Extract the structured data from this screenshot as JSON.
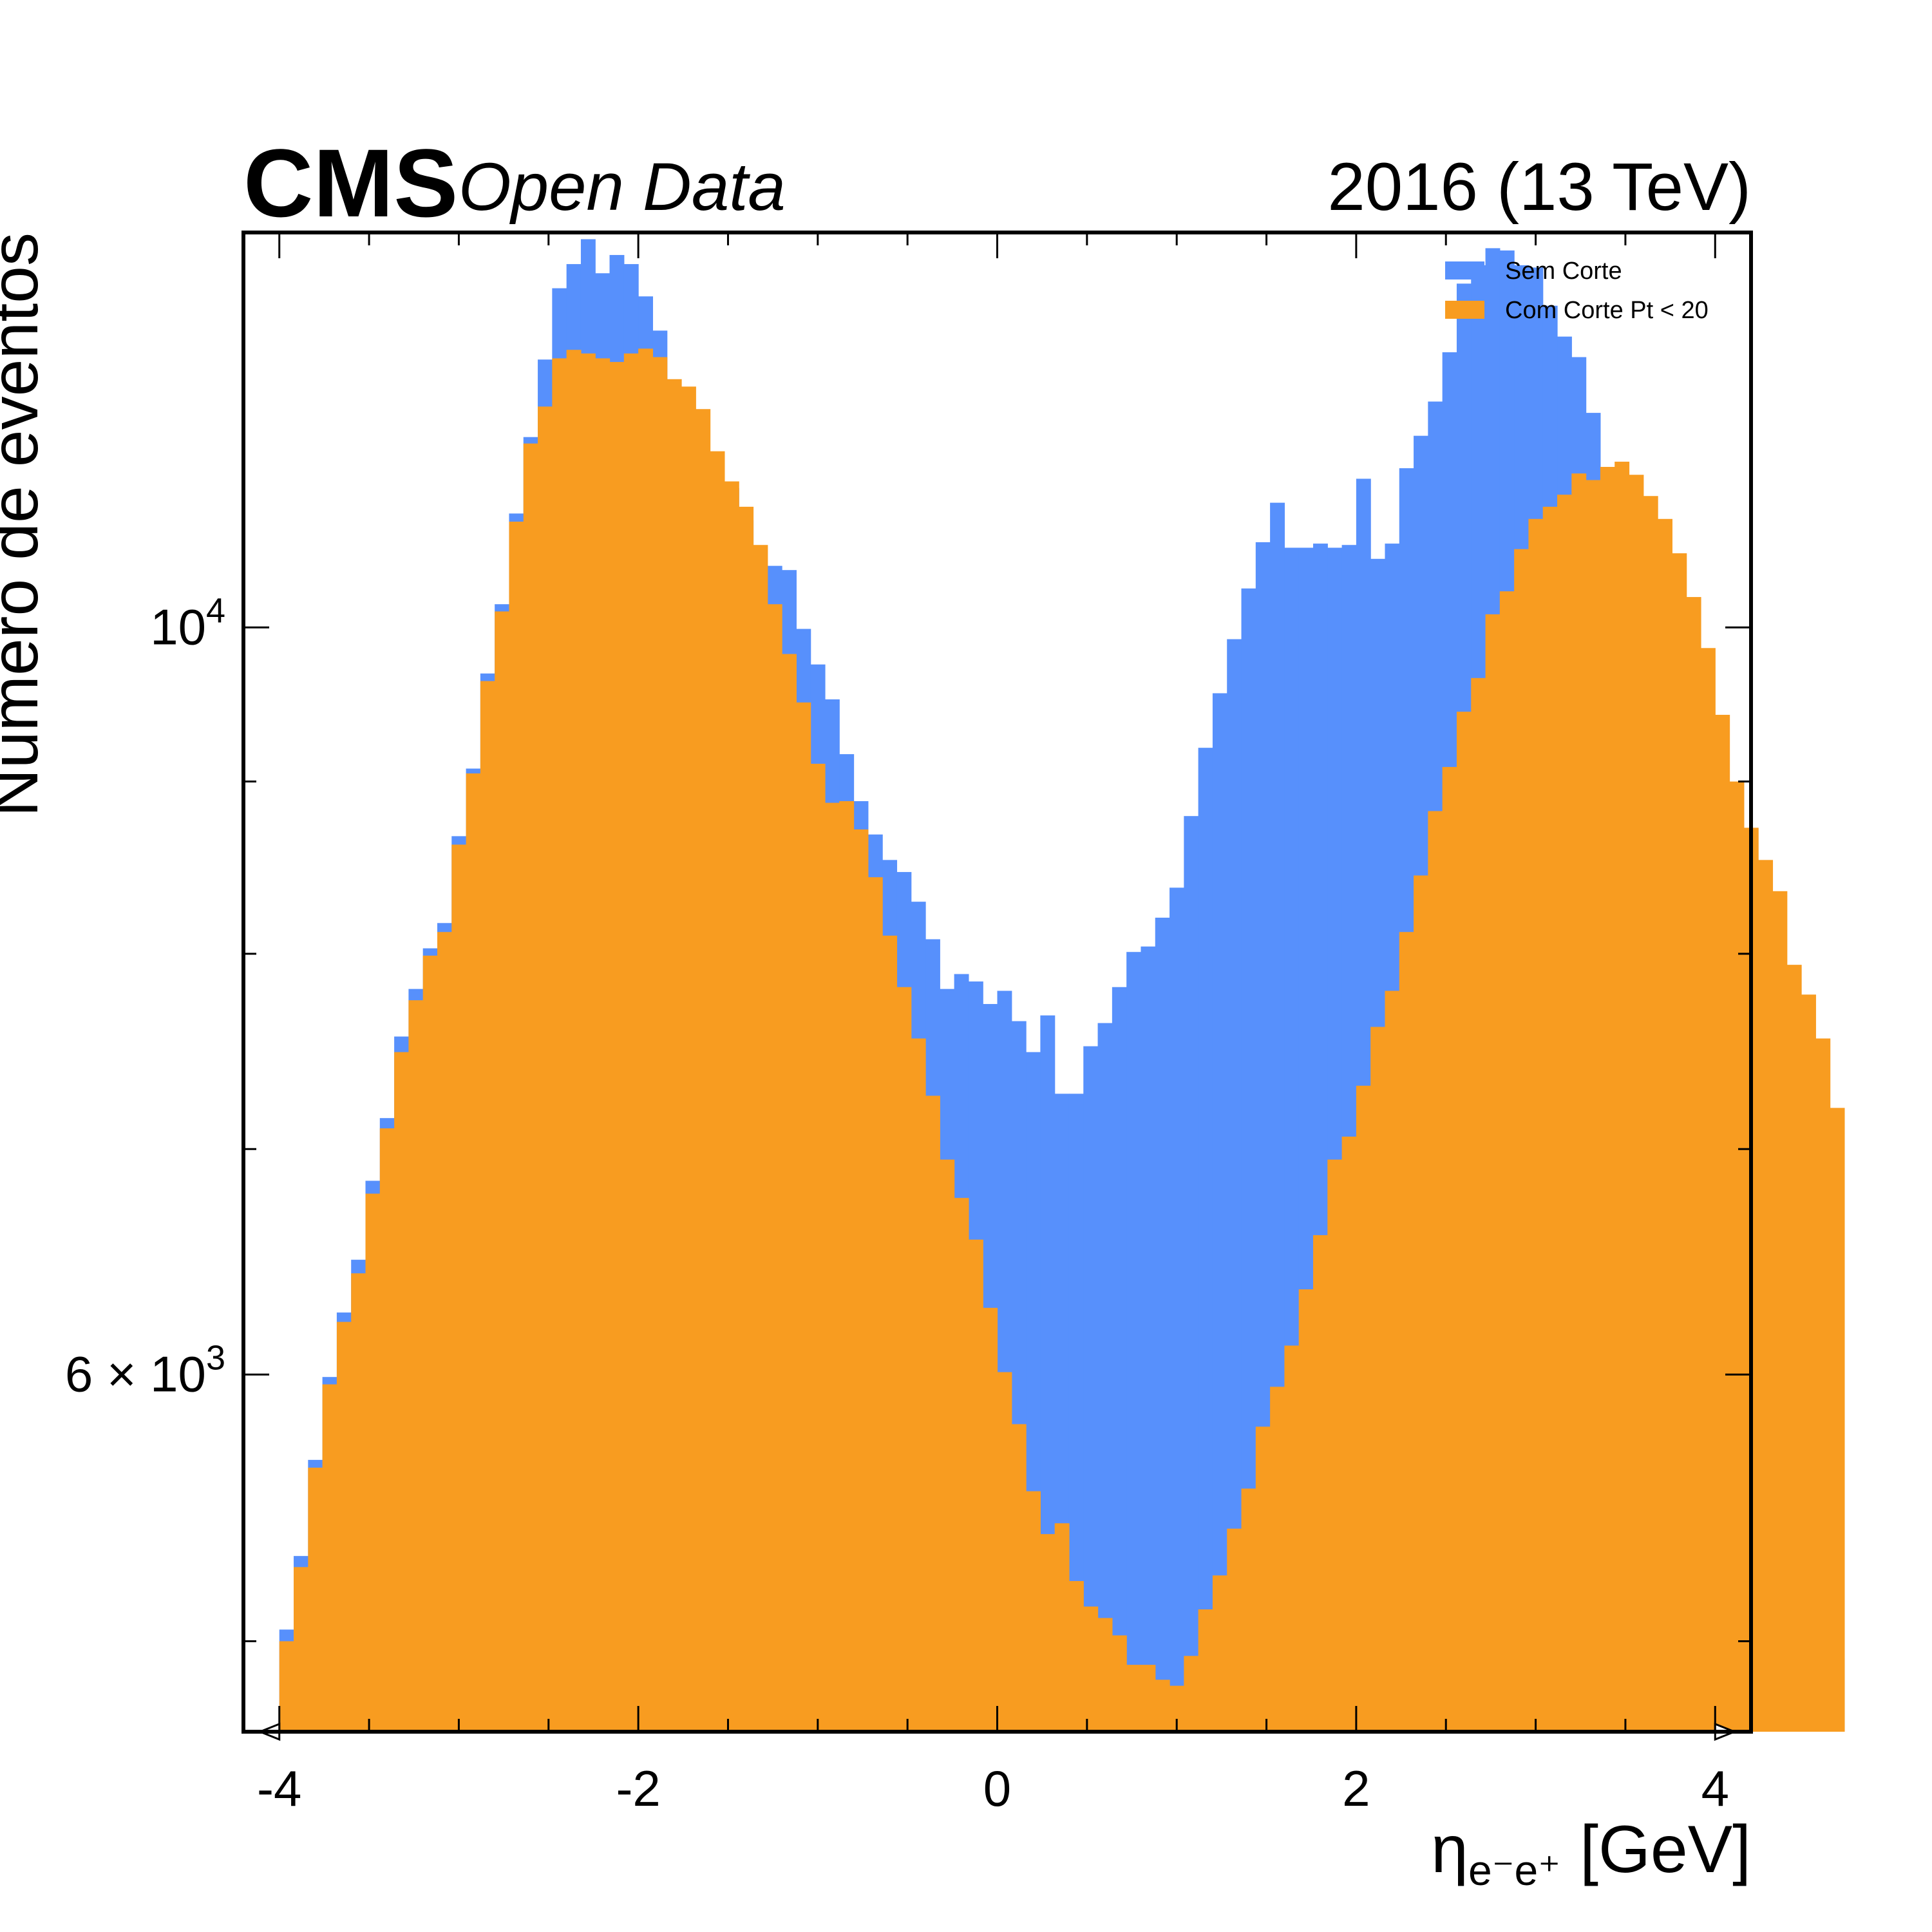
{
  "header": {
    "experiment": "CMS",
    "subtitle": "Open Data",
    "lumi": "2016 (13 TeV)"
  },
  "colors": {
    "series_0": "#5790fc",
    "series_1": "#f89c20",
    "frame": "#000000"
  },
  "chart_data": {
    "type": "bar",
    "title": "",
    "xlabel": "η",
    "xlabel_sub": "e⁻e⁺",
    "xlabel_unit": "[GeV]",
    "ylabel": "Número de eventos",
    "xlim": [
      -4.2,
      4.2
    ],
    "ylim": [
      4700,
      13100
    ],
    "yscale": "log",
    "xticks": [
      -4,
      -2,
      0,
      2,
      4
    ],
    "xtick_labels": [
      "-4",
      "-2",
      "0",
      "2",
      "4"
    ],
    "yticks_major": [
      {
        "value": 10000,
        "base": "10",
        "exp": "4",
        "mantissa": ""
      },
      {
        "value": 6000,
        "base": "10",
        "exp": "3",
        "mantissa": "6 × "
      }
    ],
    "yticks_minor": [
      5000,
      7000,
      8000,
      9000
    ],
    "grid": false,
    "legend_position": "top-right",
    "bin_edges_range": [
      -4,
      4
    ],
    "bin_width": 0.08,
    "series": [
      {
        "name": "Sem Corte",
        "values": [
          5040,
          5300,
          5660,
          5990,
          6260,
          6490,
          6850,
          7150,
          7560,
          7810,
          8030,
          8170,
          8670,
          9080,
          9690,
          10160,
          10810,
          11390,
          12010,
          12610,
          12820,
          13040,
          12740,
          12900,
          12820,
          12540,
          12250,
          11750,
          11350,
          11180,
          11080,
          11000,
          10760,
          10390,
          10430,
          10400,
          9990,
          9750,
          9520,
          9170,
          8880,
          8680,
          8530,
          8460,
          8290,
          8080,
          7810,
          7890,
          7850,
          7730,
          7800,
          7640,
          7480,
          7670,
          7270,
          7270,
          7510,
          7630,
          7820,
          8010,
          8040,
          8200,
          8370,
          8790,
          9210,
          9560,
          9920,
          10270,
          10600,
          10890,
          10560,
          10560,
          10590,
          10560,
          10580,
          11070,
          10480,
          10590,
          11150,
          11400,
          11670,
          12070,
          12650,
          12810,
          12960,
          12940,
          12810,
          12790,
          12460,
          12200,
          12030,
          11580,
          11150,
          10850,
          10520,
          9980,
          9250,
          8640,
          8270,
          7920,
          7720,
          7370,
          6910,
          6540,
          6240,
          5910,
          5440,
          5150,
          4940
        ],
        "draw": "fill"
      },
      {
        "name": "Com Corte Pt < 20",
        "values": [
          5000,
          5260,
          5630,
          5960,
          6220,
          6430,
          6790,
          7100,
          7480,
          7750,
          7990,
          8120,
          8620,
          9050,
          9640,
          10110,
          10750,
          11340,
          11630,
          12020,
          12090,
          12060,
          12020,
          11990,
          12060,
          12100,
          12030,
          11850,
          11790,
          11610,
          11280,
          11050,
          10860,
          10580,
          10160,
          9820,
          9500,
          9110,
          8870,
          8880,
          8710,
          8430,
          8100,
          7820,
          7550,
          7260,
          6950,
          6770,
          6580,
          6280,
          6010,
          5800,
          5540,
          5380,
          5420,
          5210,
          5120,
          5080,
          5020,
          4920,
          4920,
          4870,
          4850,
          4950,
          5110,
          5230,
          5400,
          5550,
          5790,
          5950,
          6120,
          6360,
          6600,
          6950,
          7060,
          7310,
          7610,
          7800,
          8120,
          8440,
          8820,
          9090,
          9440,
          9660,
          10090,
          10250,
          10550,
          10770,
          10860,
          10950,
          11110,
          11060,
          11160,
          11200,
          11100,
          10940,
          10770,
          10520,
          10210,
          9860,
          9420,
          9000,
          8720,
          8530,
          8350,
          7940,
          7780,
          7550,
          7200
        ],
        "draw": "fill"
      }
    ]
  }
}
